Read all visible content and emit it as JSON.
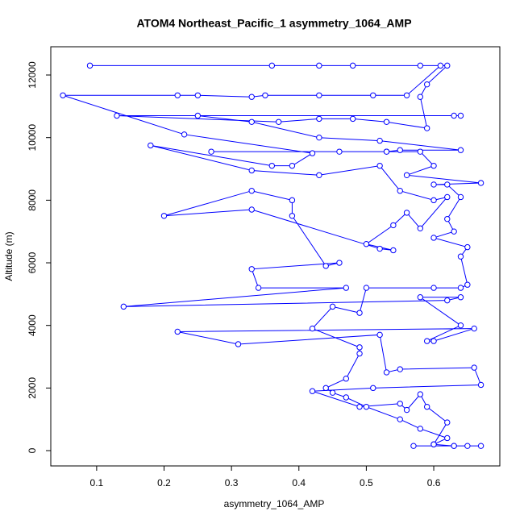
{
  "chart_data": {
    "type": "line",
    "title": "ATOM4 Northeast_Pacific_1 asymmetry_1064_AMP",
    "x_label": "asymmetry_1064_AMP",
    "y_label": "Altitude (m)",
    "xlim": [
      0.032,
      0.698
    ],
    "ylim": [
      -489,
      12902
    ],
    "xticks": [
      0.1,
      0.2,
      0.3,
      0.4,
      0.5,
      0.6
    ],
    "yticks": [
      0,
      2000,
      4000,
      6000,
      8000,
      10000,
      12000
    ],
    "series": [
      {
        "color": "#0000ff",
        "x": [
          0.63,
          0.6,
          0.62,
          0.58,
          0.55,
          0.5,
          0.47,
          0.45,
          0.44,
          0.47,
          0.49,
          0.49,
          0.42,
          0.45,
          0.49,
          0.5,
          0.6,
          0.64,
          0.65,
          0.64,
          0.65,
          0.6,
          0.63,
          0.62,
          0.64,
          0.62,
          0.6,
          0.67,
          0.56,
          0.6,
          0.58,
          0.53,
          0.27,
          0.46,
          0.53,
          0.55,
          0.64,
          0.52,
          0.43,
          0.33,
          0.25,
          0.64,
          0.63,
          0.13,
          0.37,
          0.43,
          0.48,
          0.53,
          0.59,
          0.58,
          0.59,
          0.62,
          0.58,
          0.09,
          0.36,
          0.43,
          0.48,
          0.61,
          0.56,
          0.51,
          0.43,
          0.35,
          0.33,
          0.25,
          0.22,
          0.05,
          0.23,
          0.42,
          0.39,
          0.36,
          0.18,
          0.33,
          0.43,
          0.52,
          0.55,
          0.6,
          0.62,
          0.58,
          0.56,
          0.54,
          0.5,
          0.54,
          0.52,
          0.33,
          0.2,
          0.33,
          0.39,
          0.39,
          0.44,
          0.46,
          0.33,
          0.34,
          0.47,
          0.14,
          0.62,
          0.64,
          0.58,
          0.64,
          0.59,
          0.6,
          0.66,
          0.22,
          0.31,
          0.52,
          0.53,
          0.55,
          0.66,
          0.67,
          0.51,
          0.42,
          0.49,
          0.55,
          0.56,
          0.58,
          0.59,
          0.62,
          0.6,
          0.63,
          0.65,
          0.67,
          0.57
        ],
        "values": [
          150,
          200,
          400,
          700,
          1000,
          1400,
          1700,
          1850,
          2000,
          2300,
          3100,
          3300,
          3900,
          4600,
          4400,
          5200,
          5200,
          5200,
          5300,
          6200,
          6500,
          6800,
          7000,
          7400,
          8100,
          8500,
          8500,
          8550,
          8800,
          9100,
          9550,
          9550,
          9550,
          9550,
          9550,
          9600,
          9600,
          9900,
          10000,
          10500,
          10700,
          10700,
          10700,
          10700,
          10500,
          10600,
          10600,
          10500,
          10300,
          11300,
          11700,
          12300,
          12300,
          12300,
          12300,
          12300,
          12300,
          12300,
          11350,
          11350,
          11350,
          11350,
          11300,
          11350,
          11350,
          11350,
          10100,
          9500,
          9100,
          9100,
          9750,
          8950,
          8800,
          9100,
          8300,
          8000,
          8100,
          7100,
          7600,
          7200,
          6600,
          6400,
          6450,
          7700,
          7500,
          8300,
          8000,
          7500,
          5900,
          6000,
          5800,
          5200,
          5200,
          4600,
          4800,
          4900,
          4900,
          4000,
          3500,
          3500,
          3900,
          3800,
          3400,
          3700,
          2500,
          2600,
          2650,
          2100,
          2000,
          1900,
          1400,
          1500,
          1300,
          1800,
          1400,
          900,
          200,
          150,
          150,
          150,
          150
        ]
      }
    ]
  }
}
